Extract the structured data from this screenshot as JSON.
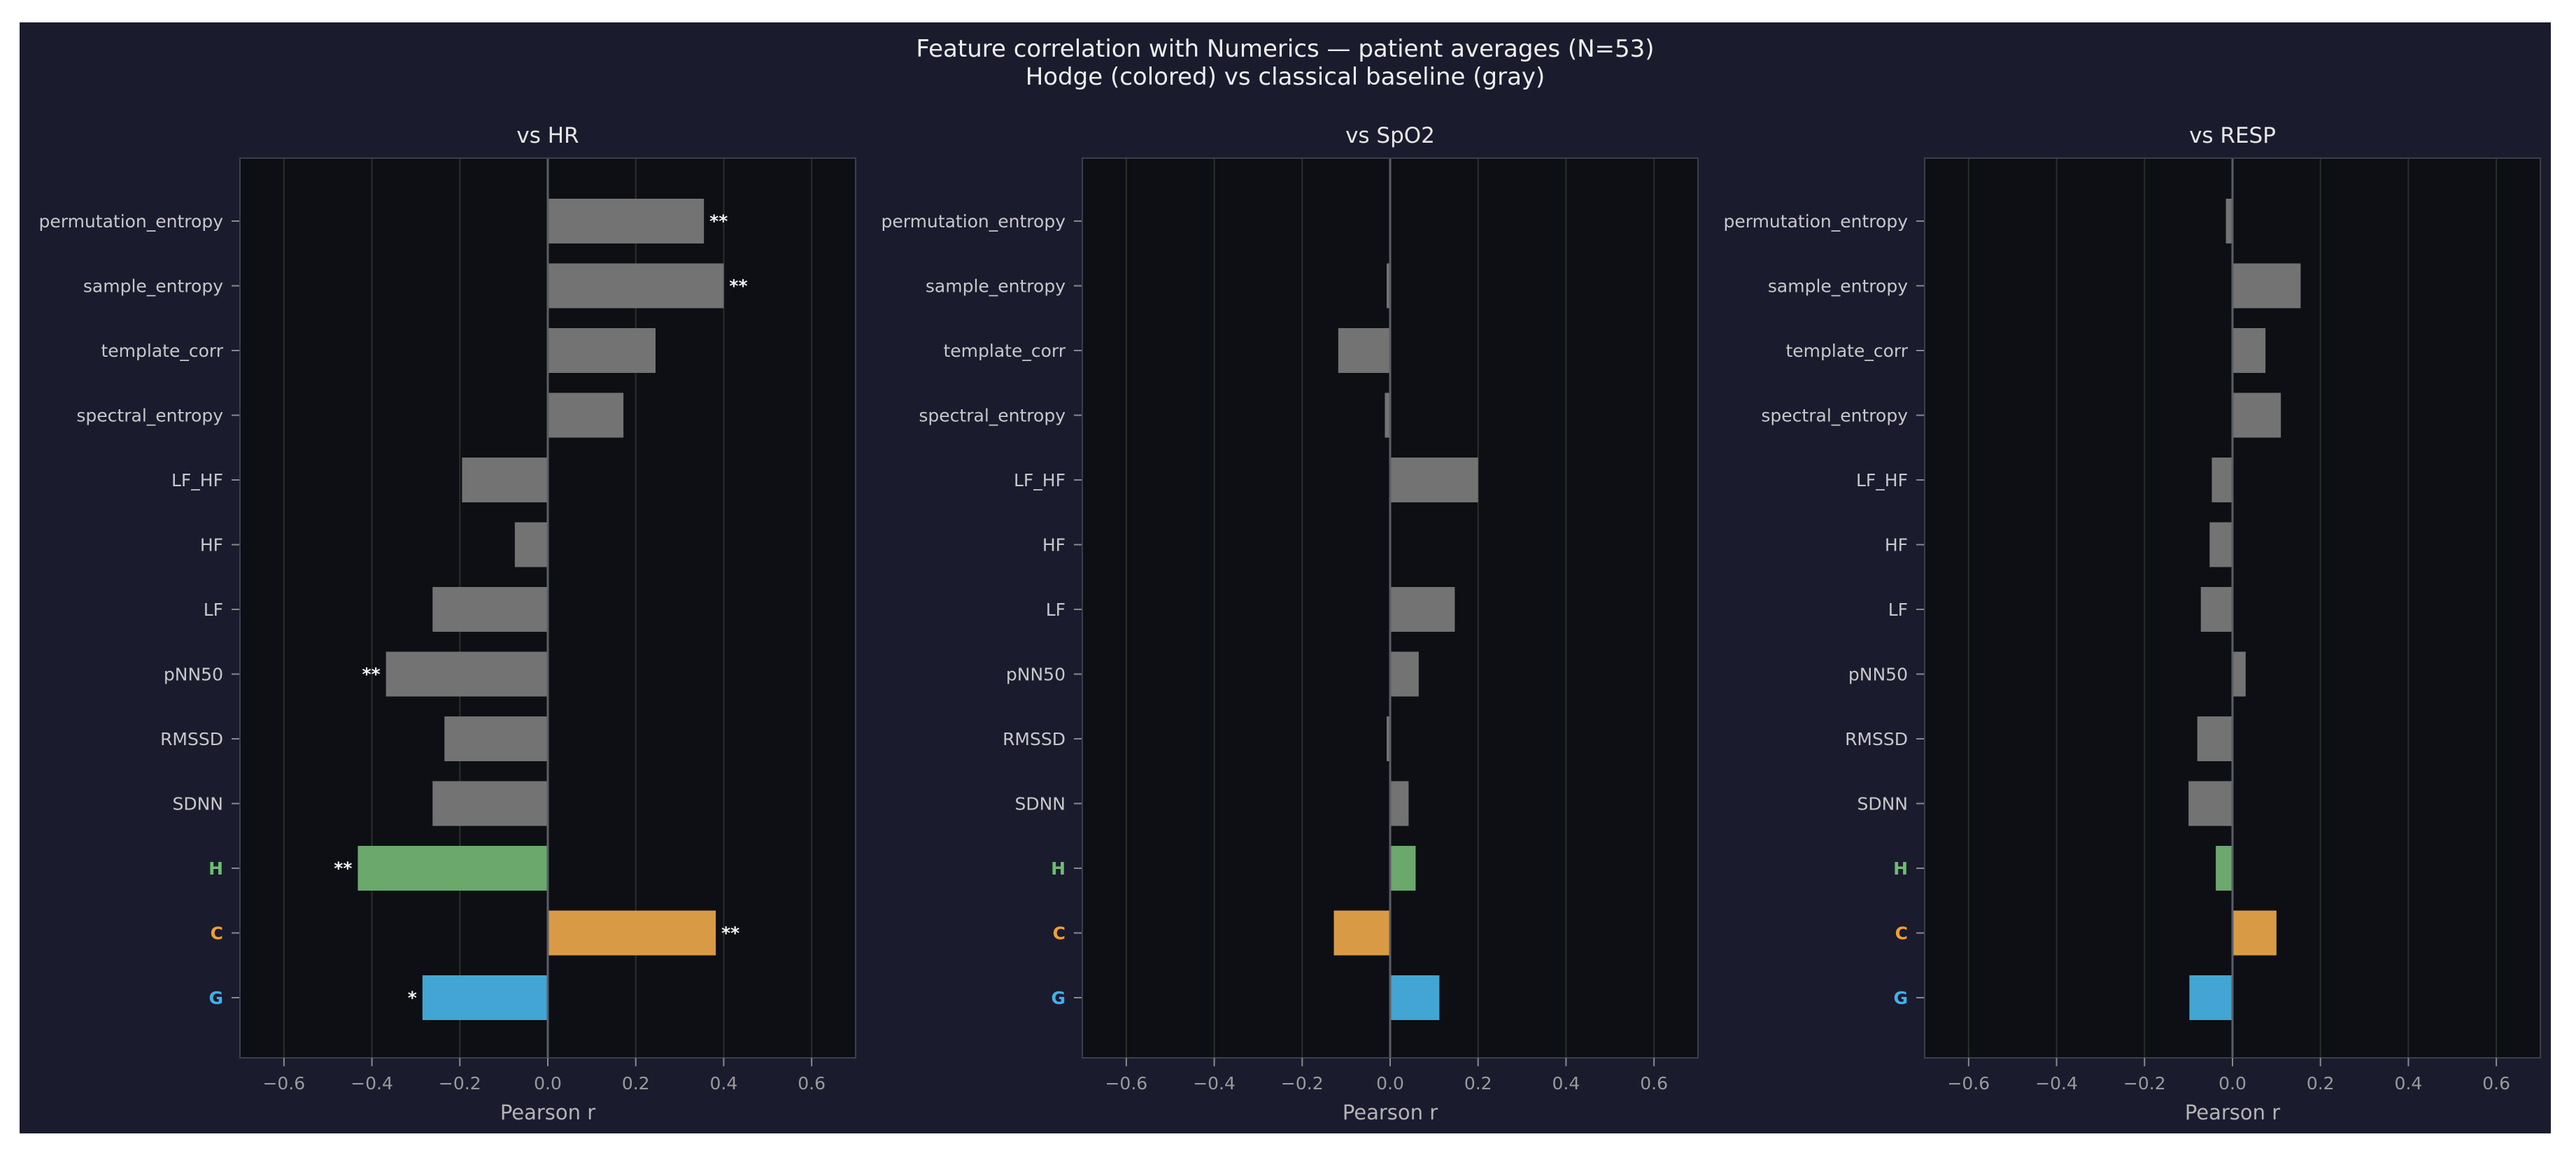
{
  "figure": {
    "title_line1": "Feature correlation with Numerics — patient averages (N=53)",
    "title_line2": "Hodge (colored) vs classical baseline (gray)"
  },
  "colors": {
    "figure_bg": "#1b1b2e",
    "axes_bg": "#0d0f14",
    "baseline_bar": "#737373",
    "H": "#6aa86c",
    "C": "#d99a45",
    "G": "#42a5d4",
    "H_label": "#6abf6e",
    "C_label": "#f0a030",
    "G_label": "#42b0e8",
    "text": "#c8c8c8",
    "tick_text": "#9a9a9a"
  },
  "chart_data": [
    {
      "type": "bar",
      "orientation": "horizontal",
      "title": "vs HR",
      "xlabel": "Pearson r",
      "xlim": [
        -0.7,
        0.7
      ],
      "xticks": [
        -0.6,
        -0.4,
        -0.2,
        0.0,
        0.2,
        0.4,
        0.6
      ],
      "xtick_labels": [
        "−0.6",
        "−0.4",
        "−0.2",
        "0.0",
        "0.2",
        "0.4",
        "0.6"
      ],
      "grid": true,
      "categories": [
        "permutation_entropy",
        "sample_entropy",
        "template_corr",
        "spectral_entropy",
        "LF_HF",
        "HF",
        "LF",
        "pNN50",
        "RMSSD",
        "SDNN",
        "H",
        "C",
        "G"
      ],
      "values": [
        0.355,
        0.4,
        0.245,
        0.172,
        -0.195,
        -0.075,
        -0.262,
        -0.368,
        -0.235,
        -0.262,
        -0.432,
        0.382,
        -0.285
      ],
      "significance": [
        "**",
        "**",
        "",
        "",
        "",
        "",
        "",
        "**",
        "",
        "",
        "**",
        "**",
        "*"
      ]
    },
    {
      "type": "bar",
      "orientation": "horizontal",
      "title": "vs SpO2",
      "xlabel": "Pearson r",
      "xlim": [
        -0.7,
        0.7
      ],
      "xticks": [
        -0.6,
        -0.4,
        -0.2,
        0.0,
        0.2,
        0.4,
        0.6
      ],
      "xtick_labels": [
        "−0.6",
        "−0.4",
        "−0.2",
        "0.0",
        "0.2",
        "0.4",
        "0.6"
      ],
      "grid": true,
      "categories": [
        "permutation_entropy",
        "sample_entropy",
        "template_corr",
        "spectral_entropy",
        "LF_HF",
        "HF",
        "LF",
        "pNN50",
        "RMSSD",
        "SDNN",
        "H",
        "C",
        "G"
      ],
      "values": [
        0.0,
        -0.008,
        -0.118,
        -0.012,
        0.2,
        0.0,
        0.147,
        0.065,
        -0.008,
        0.042,
        0.058,
        -0.128,
        0.112
      ],
      "significance": [
        "",
        "",
        "",
        "",
        "",
        "",
        "",
        "",
        "",
        "",
        "",
        "",
        ""
      ]
    },
    {
      "type": "bar",
      "orientation": "horizontal",
      "title": "vs RESP",
      "xlabel": "Pearson r",
      "xlim": [
        -0.7,
        0.7
      ],
      "xticks": [
        -0.6,
        -0.4,
        -0.2,
        0.0,
        0.2,
        0.4,
        0.6
      ],
      "xtick_labels": [
        "−0.6",
        "−0.4",
        "−0.2",
        "0.0",
        "0.2",
        "0.4",
        "0.6"
      ],
      "grid": true,
      "categories": [
        "permutation_entropy",
        "sample_entropy",
        "template_corr",
        "spectral_entropy",
        "LF_HF",
        "HF",
        "LF",
        "pNN50",
        "RMSSD",
        "SDNN",
        "H",
        "C",
        "G"
      ],
      "values": [
        -0.015,
        0.155,
        0.075,
        0.11,
        -0.047,
        -0.052,
        -0.072,
        0.03,
        -0.08,
        -0.1,
        -0.038,
        0.1,
        -0.098
      ],
      "significance": [
        "",
        "",
        "",
        "",
        "",
        "",
        "",
        "",
        "",
        "",
        "",
        "",
        ""
      ]
    }
  ]
}
